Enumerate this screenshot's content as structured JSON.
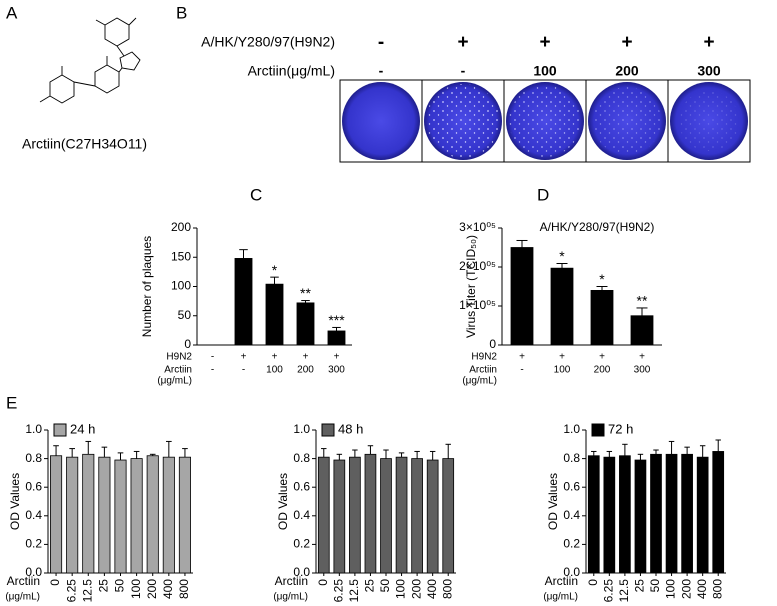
{
  "panels": [
    "A",
    "B",
    "C",
    "D",
    "E"
  ],
  "compound": "Arctiin(C27H34O11)",
  "plaque_assay": {
    "rows": [
      {
        "label": "A/HK/Y280/97(H9N2)",
        "cells": [
          "-",
          "+",
          "+",
          "+",
          "+"
        ]
      },
      {
        "label": "Arctiin(μg/mL)",
        "cells": [
          "-",
          "-",
          "100",
          "200",
          "300"
        ]
      }
    ]
  },
  "chart_data": [
    {
      "type": "bar",
      "ylabel": "Number of plaques",
      "color": "#000000",
      "values": [
        0,
        148,
        104,
        72,
        24
      ],
      "errors": [
        0,
        15,
        12,
        4,
        6
      ],
      "significance": [
        null,
        null,
        "*",
        "**",
        "***"
      ],
      "x_table": {
        "row_labels": [
          "H9N2",
          "Arctiin"
        ],
        "unit": "(μg/mL)",
        "rows": [
          [
            "-",
            "+",
            "+",
            "+",
            "+"
          ],
          [
            "-",
            "-",
            "100",
            "200",
            "300"
          ]
        ]
      },
      "ylim": [
        0,
        200
      ],
      "yticks": [
        0,
        50,
        100,
        150,
        200
      ],
      "grid": false
    },
    {
      "type": "bar",
      "title": "A/HK/Y280/97(H9N2)",
      "ylabel": "Virus Titer (TCID₅₀)",
      "color": "#000000",
      "values": [
        250000,
        197000,
        140000,
        75000
      ],
      "errors": [
        18000,
        12000,
        10000,
        20000
      ],
      "significance": [
        null,
        "*",
        "*",
        "**"
      ],
      "x_table": {
        "row_labels": [
          "H9N2",
          "Arctiin"
        ],
        "unit": "(μg/mL)",
        "rows": [
          [
            "+",
            "+",
            "+",
            "+"
          ],
          [
            "-",
            "100",
            "200",
            "300"
          ]
        ]
      },
      "ylim": [
        0,
        300000
      ],
      "yticks": [
        0,
        {
          "value": 100000,
          "label": "1×10⁰⁵"
        },
        {
          "value": 200000,
          "label": "2×10⁰⁵"
        },
        {
          "value": 300000,
          "label": "3×10⁰⁵"
        }
      ],
      "grid": false
    },
    {
      "type": "bar",
      "ylabel": "OD Values",
      "xlabel": "Arctiin",
      "xunit": "(μg/mL)",
      "legend": "upper left",
      "categories": [
        "0",
        "6.25",
        "12.5",
        "25",
        "50",
        "100",
        "200",
        "400",
        "800"
      ],
      "series": [
        {
          "name": "24 h",
          "color": "#a6a6a6",
          "values": [
            0.82,
            0.81,
            0.83,
            0.81,
            0.79,
            0.8,
            0.82,
            0.81,
            0.81
          ],
          "errors": [
            0.07,
            0.06,
            0.09,
            0.07,
            0.05,
            0.05,
            0.01,
            0.11,
            0.06
          ]
        }
      ],
      "ylim": [
        0,
        1.0
      ],
      "yticks": [
        {
          "value": 0,
          "label": "0.0"
        },
        0.2,
        0.4,
        0.6,
        0.8,
        {
          "value": 1.0,
          "label": "1.0"
        }
      ],
      "grid": false
    },
    {
      "type": "bar",
      "ylabel": "OD Values",
      "xlabel": "Arctiin",
      "xunit": "(μg/mL)",
      "legend": "upper left",
      "categories": [
        "0",
        "6.25",
        "12.5",
        "25",
        "50",
        "100",
        "200",
        "400",
        "800"
      ],
      "series": [
        {
          "name": "48 h",
          "color": "#5f5f5f",
          "values": [
            0.81,
            0.79,
            0.81,
            0.83,
            0.8,
            0.81,
            0.8,
            0.79,
            0.8
          ],
          "errors": [
            0.06,
            0.04,
            0.05,
            0.06,
            0.06,
            0.03,
            0.05,
            0.06,
            0.1
          ]
        }
      ],
      "ylim": [
        0,
        1.0
      ],
      "yticks": [
        {
          "value": 0,
          "label": "0.0"
        },
        0.2,
        0.4,
        0.6,
        0.8,
        {
          "value": 1.0,
          "label": "1.0"
        }
      ],
      "grid": false
    },
    {
      "type": "bar",
      "ylabel": "OD Values",
      "xlabel": "Arctiin",
      "xunit": "(μg/mL)",
      "legend": "upper left",
      "categories": [
        "0",
        "6.25",
        "12.5",
        "25",
        "50",
        "100",
        "200",
        "400",
        "800"
      ],
      "series": [
        {
          "name": "72 h",
          "color": "#000000",
          "values": [
            0.82,
            0.81,
            0.82,
            0.79,
            0.83,
            0.83,
            0.83,
            0.81,
            0.85
          ],
          "errors": [
            0.03,
            0.04,
            0.08,
            0.04,
            0.03,
            0.09,
            0.05,
            0.08,
            0.08
          ]
        }
      ],
      "ylim": [
        0,
        1.0
      ],
      "yticks": [
        {
          "value": 0,
          "label": "0.0"
        },
        0.2,
        0.4,
        0.6,
        0.8,
        {
          "value": 1.0,
          "label": "1.0"
        }
      ],
      "grid": false
    }
  ]
}
